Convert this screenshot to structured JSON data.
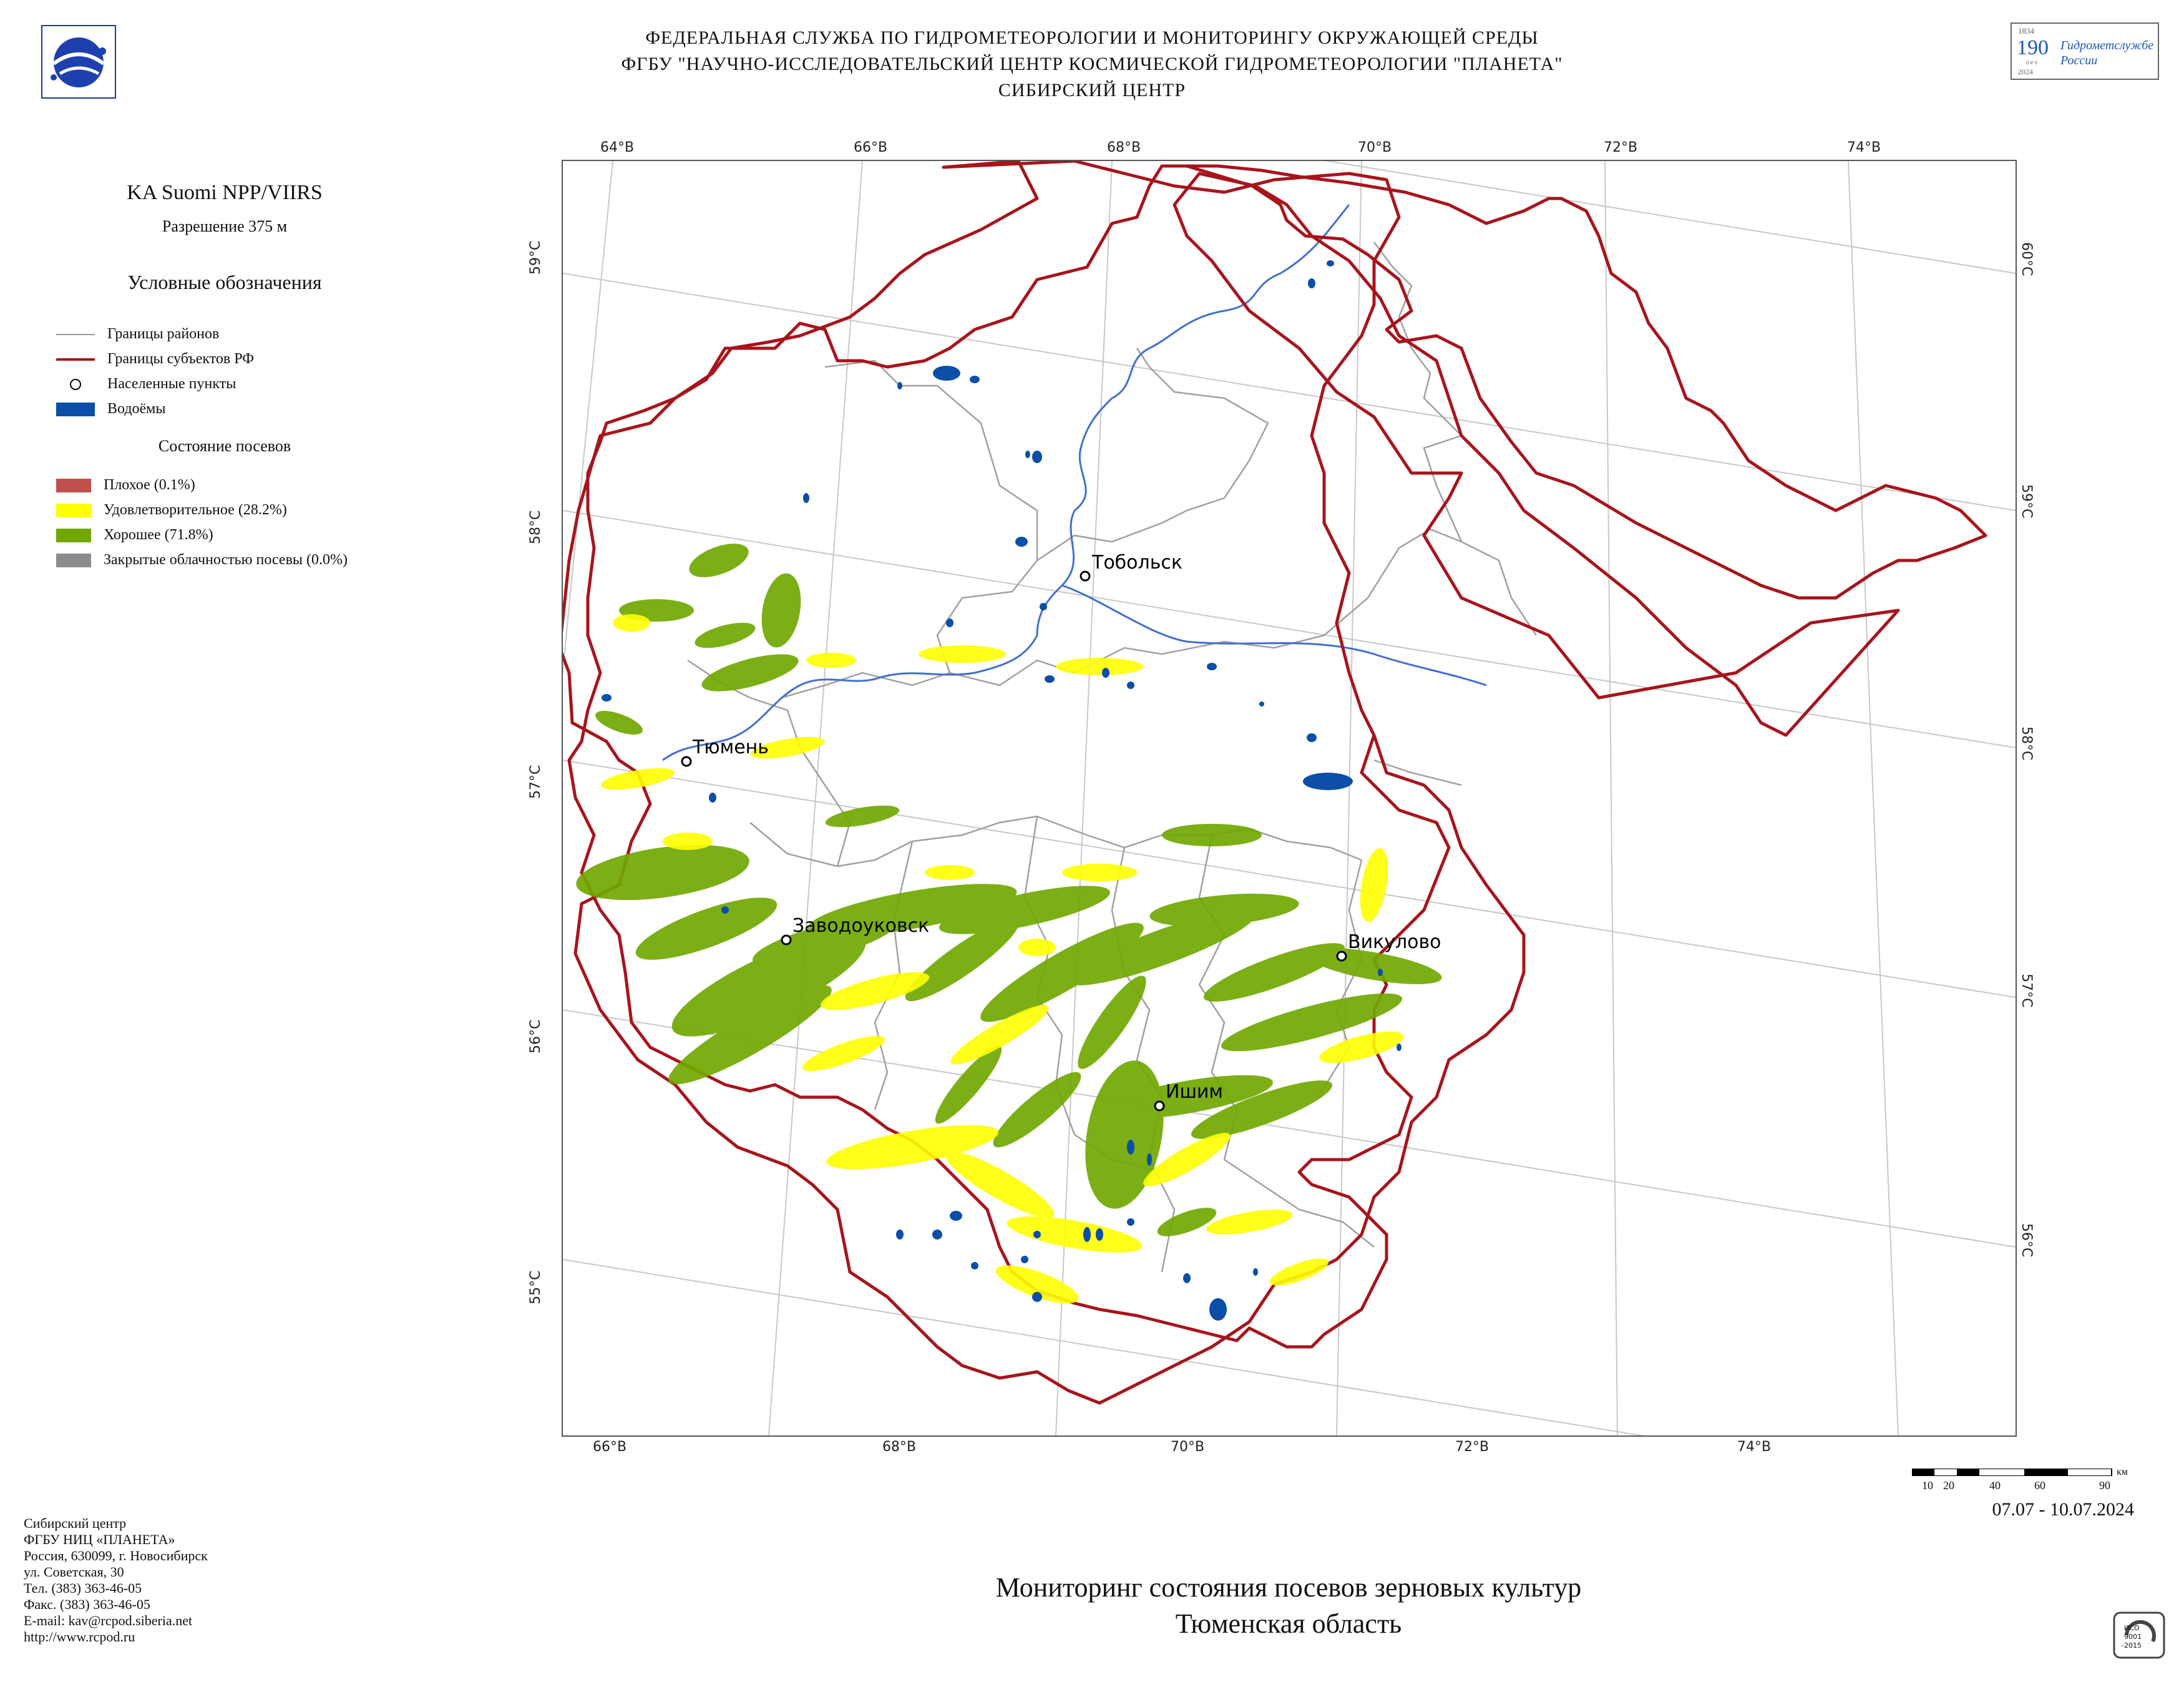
{
  "header": {
    "line1": "ФЕДЕРАЛЬНАЯ СЛУЖБА ПО ГИДРОМЕТЕОРОЛОГИИ И МОНИТОРИНГУ ОКРУЖАЮЩЕЙ СРЕДЫ",
    "line2": "ФГБУ \"НАУЧНО-ИССЛЕДОВАТЕЛЬСКИЙ ЦЕНТР КОСМИЧЕСКОЙ ГИДРОМЕТЕОРОЛОГИИ \"ПЛАНЕТА\"",
    "line3": "СИБИРСКИЙ ЦЕНТР"
  },
  "badge": {
    "year_top": "1834",
    "number": "190",
    "unit": "лет",
    "year_bottom": "2024",
    "text1": "Гидрометслужбе",
    "text2": "России"
  },
  "sidebar": {
    "satellite": "KA Suomi NPP/VIIRS",
    "resolution": "Разрешение 375 м",
    "legend_title": "Условные обозначения",
    "legend_items": [
      {
        "label": "Границы районов",
        "icon": "gray-line",
        "color": "#9a9a9a"
      },
      {
        "label": "Границы субъектов РФ",
        "icon": "red-line",
        "color": "#a8141c"
      },
      {
        "label": "Населенные пункты",
        "icon": "circle",
        "color": "#000000"
      },
      {
        "label": "Водоёмы",
        "icon": "blue-box",
        "color": "#0b4fa8"
      }
    ],
    "crop_title": "Состояние посевов",
    "crop_items": [
      {
        "label": "Плохое (0.1%)",
        "color": "#c0504d",
        "percent": 0.1
      },
      {
        "label": "Удовлетворительное (28.2%)",
        "color": "#ffff00",
        "percent": 28.2
      },
      {
        "label": "Хорошее (71.8%)",
        "color": "#70a800",
        "percent": 71.8
      },
      {
        "label": "Закрытые облачностью посевы (0.0%)",
        "color": "#8c8c8c",
        "percent": 0.0
      }
    ]
  },
  "map": {
    "top_lon_labels": [
      "64°В",
      "66°В",
      "68°В",
      "70°В",
      "72°В",
      "74°В"
    ],
    "bottom_lon_labels": [
      "66°В",
      "68°В",
      "70°В",
      "72°В",
      "74°В"
    ],
    "left_lat_labels": [
      "59°С",
      "58°С",
      "57°С",
      "56°С",
      "55°С"
    ],
    "right_lat_labels": [
      "60°С",
      "59°С",
      "58°С",
      "57°С",
      "56°С"
    ],
    "cities": [
      {
        "name": "Тобольск"
      },
      {
        "name": "Тюмень"
      },
      {
        "name": "Заводоуковск"
      },
      {
        "name": "Викулово"
      },
      {
        "name": "Ишим"
      }
    ],
    "colors": {
      "border": "#a8141c",
      "district": "#a0a0a0",
      "water": "#0b4fa8",
      "good": "#70a800",
      "satisfactory": "#ffff00",
      "grid": "#c8c8c8"
    }
  },
  "scale": {
    "labels": [
      "10",
      "20",
      "40",
      "60",
      "90"
    ],
    "unit": "км"
  },
  "date_range": "07.07 - 10.07.2024",
  "footer": {
    "title_line1": "Мониторинг состояния посевов зерновых культур",
    "title_line2": "Тюменская область",
    "contacts": [
      "Сибирский центр",
      "ФГБУ НИЦ «ПЛАНЕТА»",
      "Россия, 630099, г. Новосибирск",
      "ул. Советская, 30",
      "Тел. (383) 363-46-05",
      "Факс. (383) 363-46-05",
      "E-mail: kav@rcpod.siberia.net",
      "http://www.rcpod.ru"
    ],
    "iso_text1": "ИСО",
    "iso_text2": "9001",
    "iso_text3": "-2015"
  }
}
